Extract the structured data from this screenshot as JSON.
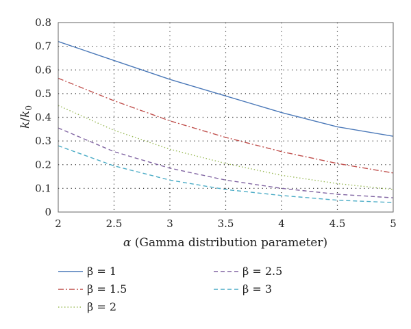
{
  "chart_data": {
    "type": "line",
    "x_ticks": [
      2,
      2.5,
      3,
      3.5,
      4,
      4.5,
      5
    ],
    "y_ticks": [
      0,
      0.1,
      0.2,
      0.3,
      0.4,
      0.5,
      0.6,
      0.7,
      0.8
    ],
    "xlim": [
      2,
      5
    ],
    "ylim": [
      0,
      0.8
    ],
    "grid": "dotted",
    "xlabel_prefix": "α",
    "xlabel_rest": " (Gamma distribution parameter)",
    "ylabel_main": "k",
    "ylabel_sep": "/",
    "ylabel_k0": "k",
    "ylabel_sub": "0",
    "legend_placement": "bottom",
    "series": [
      {
        "name": "β = 1",
        "color": "#4a78b8",
        "dash": "solid",
        "x": [
          2,
          2.5,
          3,
          3.5,
          4,
          4.5,
          5
        ],
        "values": [
          0.72,
          0.64,
          0.56,
          0.49,
          0.42,
          0.36,
          0.32
        ]
      },
      {
        "name": "β = 1.5",
        "color": "#c0504d",
        "dash": "dashdot",
        "x": [
          2,
          2.5,
          3,
          3.5,
          4,
          4.5,
          5
        ],
        "values": [
          0.565,
          0.47,
          0.385,
          0.315,
          0.255,
          0.205,
          0.165
        ]
      },
      {
        "name": "β = 2",
        "color": "#9bbb59",
        "dash": "dotted",
        "x": [
          2,
          2.5,
          3,
          3.5,
          4,
          4.5,
          5
        ],
        "values": [
          0.45,
          0.345,
          0.265,
          0.205,
          0.155,
          0.12,
          0.095
        ]
      },
      {
        "name": "β = 2.5",
        "color": "#8064a2",
        "dash": "dashed",
        "x": [
          2,
          2.5,
          3,
          3.5,
          4,
          4.5,
          5
        ],
        "values": [
          0.355,
          0.255,
          0.185,
          0.135,
          0.1,
          0.075,
          0.06
        ]
      },
      {
        "name": "β = 3",
        "color": "#4bacc6",
        "dash": "dashed",
        "x": [
          2,
          2.5,
          3,
          3.5,
          4,
          4.5,
          5
        ],
        "values": [
          0.28,
          0.195,
          0.135,
          0.095,
          0.07,
          0.05,
          0.04
        ]
      }
    ]
  }
}
